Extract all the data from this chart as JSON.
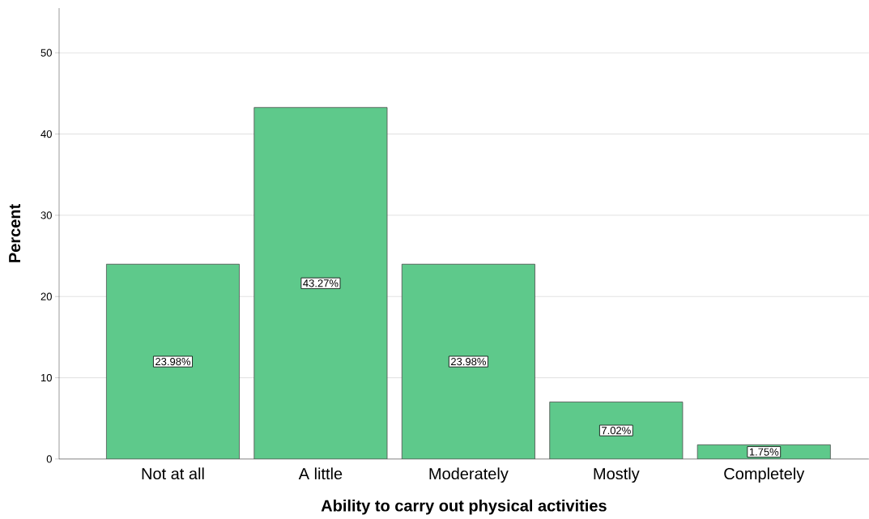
{
  "chart_data": {
    "type": "bar",
    "xlabel": "Ability to carry out physical activities",
    "ylabel": "Percent",
    "categories": [
      "Not at all",
      "A little",
      "Moderately",
      "Mostly",
      "Completely"
    ],
    "values": [
      23.98,
      43.27,
      23.98,
      7.02,
      1.75
    ],
    "value_labels": [
      "23.98%",
      "43.27%",
      "23.98%",
      "7.02%",
      "1.75%"
    ],
    "color": "#5ec98b",
    "ylim": [
      0,
      55.5
    ],
    "yticks": [
      0,
      10,
      20,
      30,
      40,
      50
    ],
    "grid": "y"
  }
}
